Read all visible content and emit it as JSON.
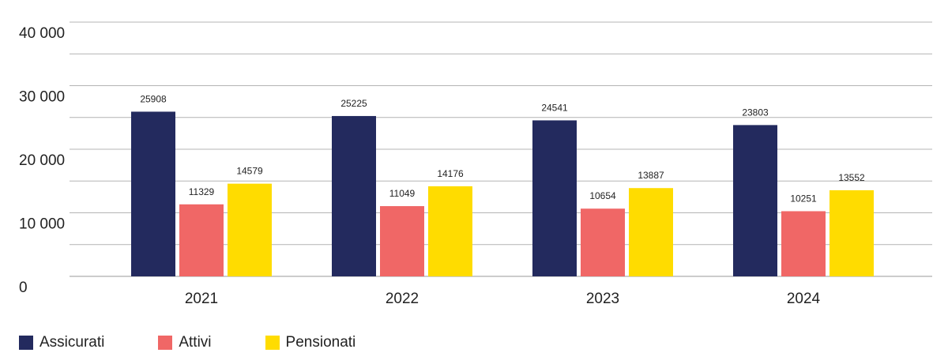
{
  "chart_data": {
    "type": "bar",
    "categories": [
      "2021",
      "2022",
      "2023",
      "2024"
    ],
    "series": [
      {
        "name": "Assicurati",
        "color": "#232a5e",
        "values": [
          25908,
          25225,
          24541,
          23803
        ]
      },
      {
        "name": "Attivi",
        "color": "#f06766",
        "values": [
          11329,
          11049,
          10654,
          10251
        ]
      },
      {
        "name": "Pensionati",
        "color": "#ffdc00",
        "values": [
          14579,
          14176,
          13887,
          13552
        ]
      }
    ],
    "ylim": [
      0,
      40000
    ],
    "y_ticks": [
      0,
      10000,
      20000,
      30000,
      40000
    ],
    "y_tick_labels": [
      "0",
      "10 000",
      "20 000",
      "30 000",
      "40 000"
    ],
    "grid_step": 5000,
    "grid": true,
    "legend": "bottom-left",
    "title": "",
    "xlabel": "",
    "ylabel": ""
  }
}
